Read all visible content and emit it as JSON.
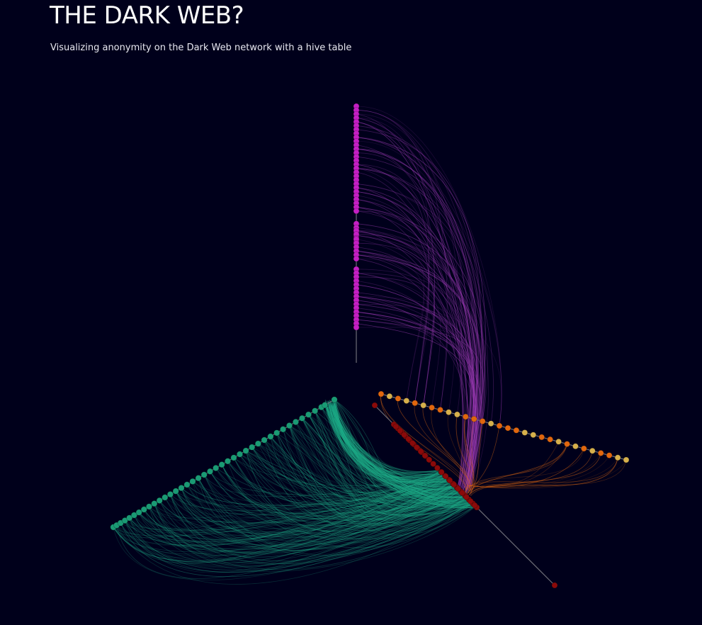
{
  "header": {
    "title": "THE DARK WEB?",
    "subtitle": "Visualizing anonymity on the Dark Web network with a hive table"
  },
  "colors": {
    "background": "#00001b",
    "axis_line": "#6e6e78",
    "magenta": "#c41fc4",
    "green": "#1a9a74",
    "red": "#8a0a0a",
    "orange": "#e0660e",
    "gold": "#d6b04c",
    "link_green": "#1fb08a",
    "link_purple": "#a63fbe",
    "link_orange": "#e36a12"
  },
  "chart_data": {
    "type": "hive",
    "title": "THE DARK WEB?",
    "axes": [
      {
        "group": "magenta",
        "node_count": 58
      },
      {
        "group": "green",
        "node_count": 40
      },
      {
        "group": "red-lower",
        "node_count": 22
      },
      {
        "group": "orange-gold",
        "node_count": 30
      }
    ],
    "link_groups": [
      {
        "group": "green-to-red",
        "link_count": 260
      },
      {
        "group": "magenta-to-red",
        "link_count": 70
      },
      {
        "group": "magenta-to-orange",
        "link_count": 30
      },
      {
        "group": "orange-to-red",
        "link_count": 25
      }
    ]
  }
}
